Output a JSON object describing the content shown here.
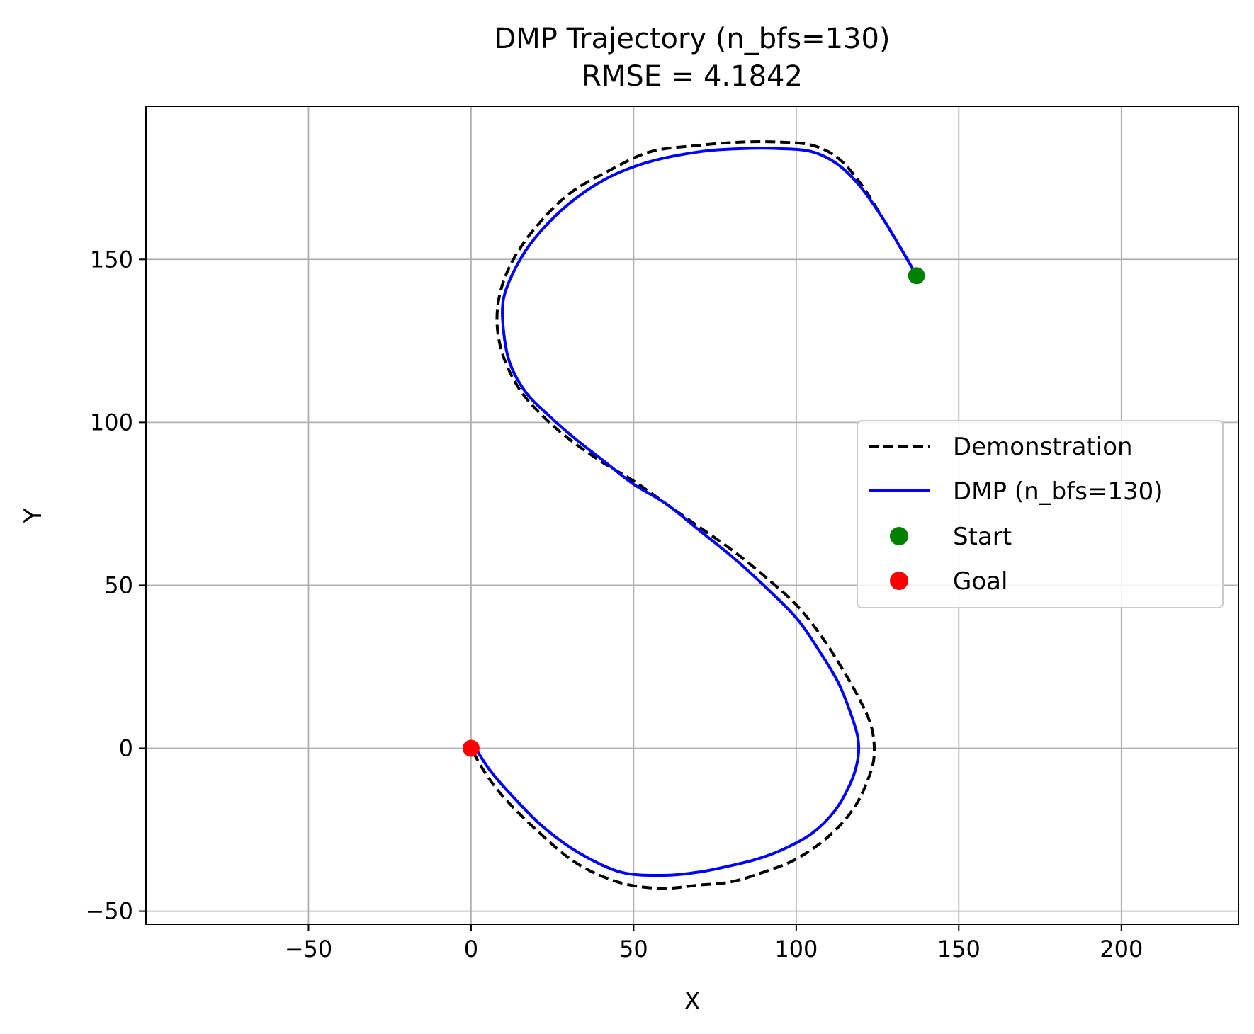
{
  "chart_data": {
    "type": "line",
    "title": "DMP Trajectory (n_bfs=130)",
    "subtitle": "RMSE = 4.1842",
    "xlabel": "X",
    "ylabel": "Y",
    "xlim": [
      -100,
      236
    ],
    "ylim": [
      -54,
      197
    ],
    "xticks": [
      -50,
      0,
      50,
      100,
      150,
      200
    ],
    "yticks": [
      -50,
      0,
      50,
      100,
      150
    ],
    "xtick_labels": [
      "−50",
      "0",
      "50",
      "100",
      "150",
      "200"
    ],
    "ytick_labels": [
      "−50",
      "0",
      "50",
      "100",
      "150"
    ],
    "grid": true,
    "legend_position": "center-right",
    "series": [
      {
        "name": "Demonstration",
        "style": "dashed",
        "color": "#000000",
        "x": [
          137,
          133,
          127,
          120,
          113,
          105,
          95,
          83,
          70,
          55,
          42,
          30,
          20,
          13,
          9,
          8,
          10,
          15,
          22,
          30,
          40,
          50,
          60,
          70,
          80,
          90,
          100,
          108,
          115,
          120,
          123,
          124,
          123,
          118,
          110,
          100,
          90,
          80,
          70,
          58,
          45,
          32,
          20,
          10,
          4,
          0
        ],
        "y": [
          145,
          152,
          162,
          173,
          181,
          185,
          186,
          186,
          185,
          183,
          177,
          170,
          160,
          150,
          140,
          130,
          120,
          110,
          102,
          95,
          88,
          82,
          75,
          68,
          61,
          53,
          44,
          34,
          23,
          14,
          7,
          0,
          -7,
          -18,
          -27,
          -34,
          -38,
          -41,
          -42,
          -43,
          -41,
          -35,
          -25,
          -15,
          -7,
          0
        ]
      },
      {
        "name": "DMP (n_bfs=130)",
        "style": "solid",
        "color": "#0000ff",
        "x": [
          137,
          133,
          127,
          120,
          113,
          105,
          95,
          83,
          70,
          55,
          42,
          30,
          20,
          14,
          10,
          10,
          12,
          17,
          24,
          32,
          41,
          50,
          60,
          70,
          80,
          90,
          100,
          107,
          113,
          117,
          119,
          119,
          117,
          112,
          105,
          96,
          88,
          80,
          70,
          59,
          46,
          33,
          22,
          13,
          6,
          2
        ],
        "y": [
          145,
          152,
          162,
          172,
          179,
          183,
          184,
          184,
          183,
          180,
          175,
          167,
          157,
          148,
          138,
          128,
          118,
          109,
          102,
          95,
          88,
          81,
          75,
          67,
          59,
          50,
          40,
          30,
          20,
          10,
          3,
          -3,
          -10,
          -19,
          -26,
          -31,
          -34,
          -36,
          -38,
          -39,
          -38,
          -32,
          -24,
          -15,
          -7,
          -1
        ]
      }
    ],
    "scatter": [
      {
        "name": "Start",
        "color": "#008000",
        "x": 137,
        "y": 145
      },
      {
        "name": "Goal",
        "color": "#ff0000",
        "x": 0,
        "y": 0
      }
    ]
  }
}
